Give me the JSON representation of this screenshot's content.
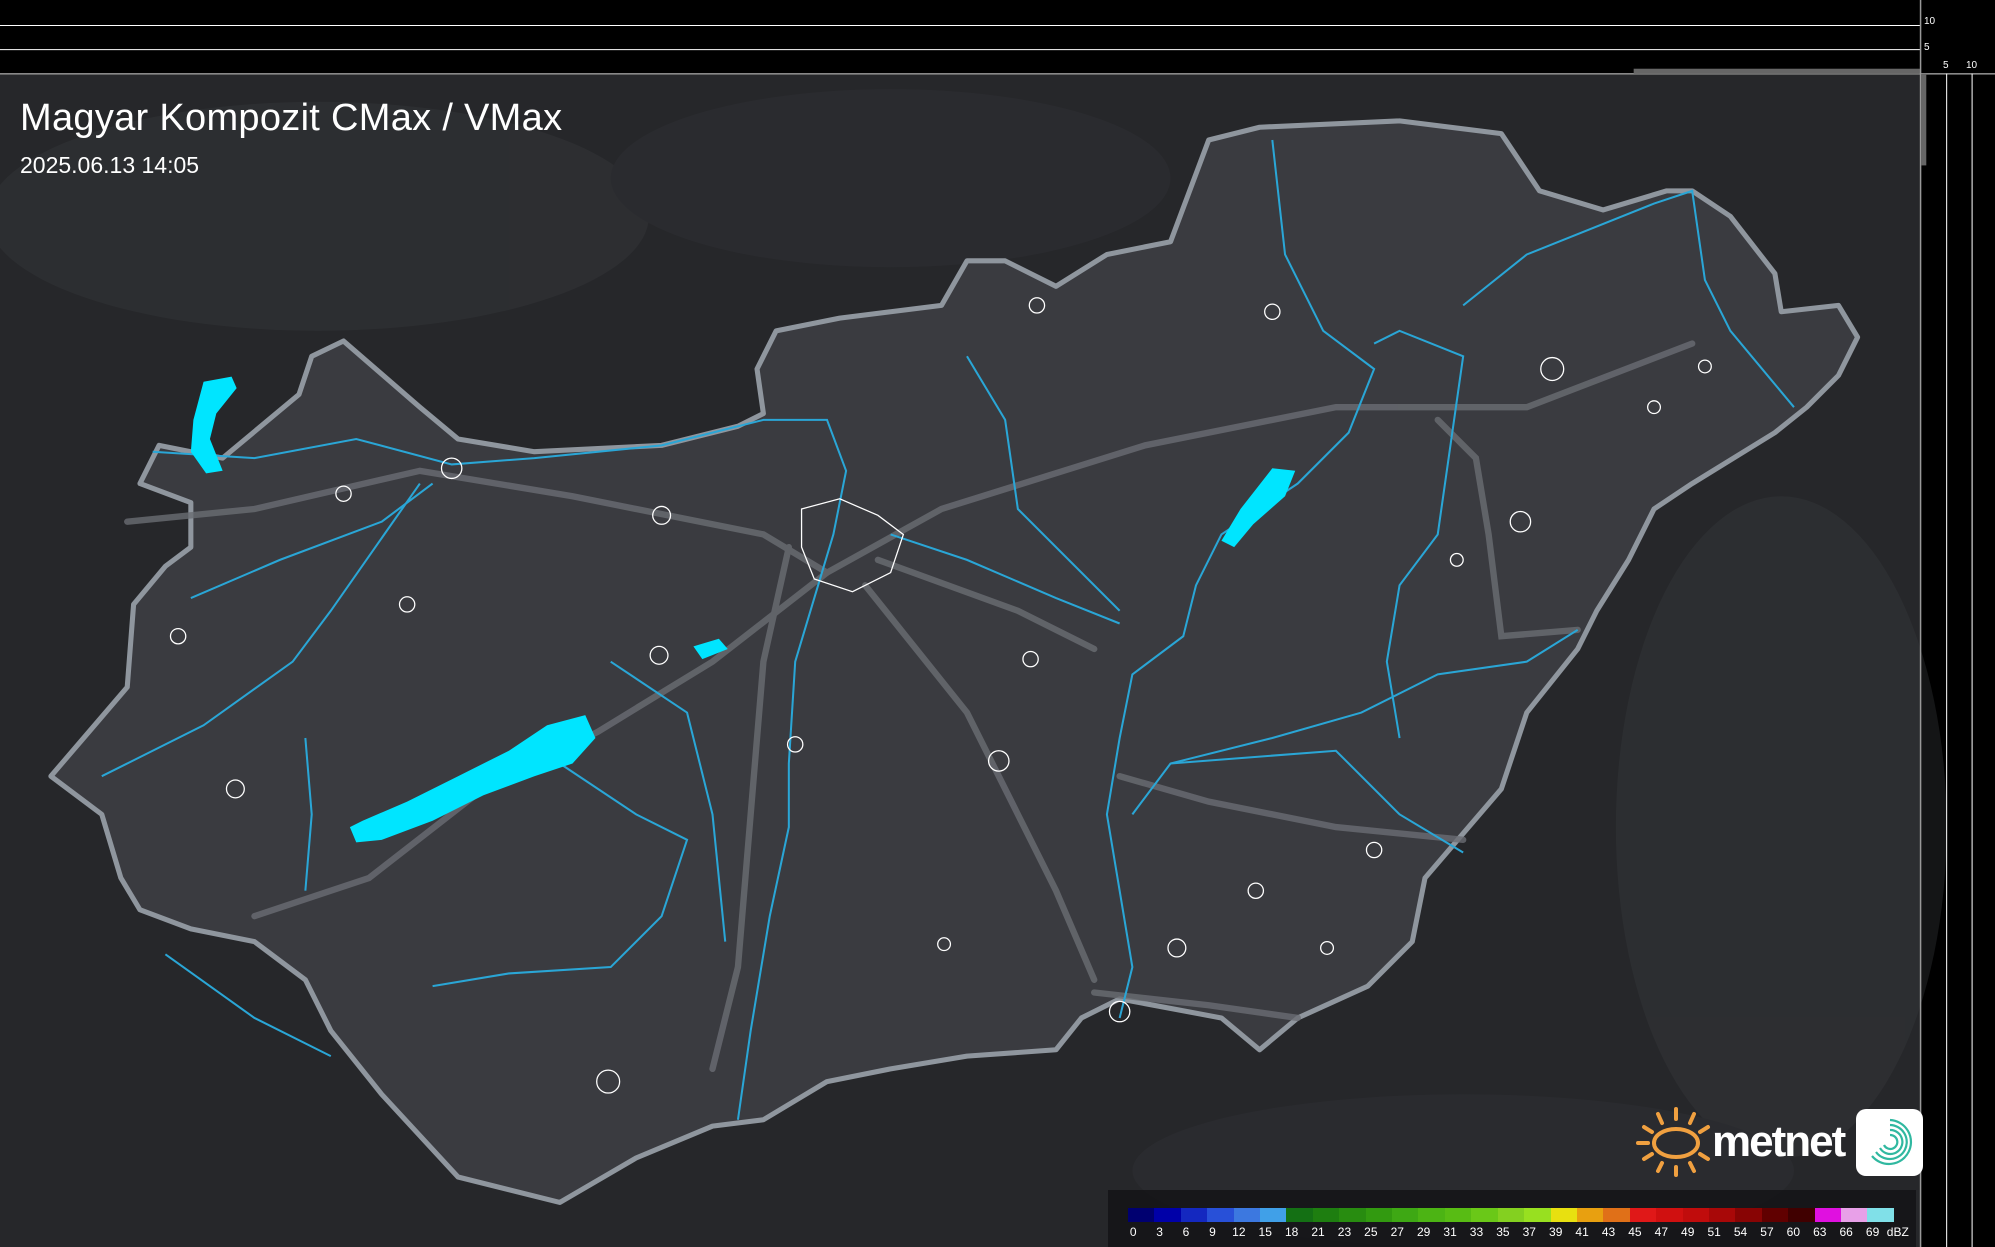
{
  "header": {
    "title": "Magyar Kompozit CMax / VMax",
    "timestamp": "2025.06.13 14:05"
  },
  "profile_axes": {
    "horizontal_ticks": [
      "10",
      "5"
    ],
    "vertical_ticks": [
      "5",
      "10"
    ]
  },
  "legend": {
    "unit": "dBZ",
    "labels": [
      "0",
      "3",
      "6",
      "9",
      "12",
      "15",
      "18",
      "21",
      "23",
      "25",
      "27",
      "29",
      "31",
      "33",
      "35",
      "37",
      "39",
      "41",
      "43",
      "45",
      "47",
      "49",
      "51",
      "54",
      "57",
      "60",
      "63",
      "66",
      "69"
    ],
    "colors": [
      "#000070",
      "#0000a8",
      "#1428c0",
      "#2850d8",
      "#3c78e0",
      "#40a0e8",
      "#147014",
      "#1e7e10",
      "#288c10",
      "#329a10",
      "#3ea814",
      "#4cb414",
      "#58bc14",
      "#6ac818",
      "#84d020",
      "#98e020",
      "#e8e010",
      "#e8a010",
      "#e07018",
      "#e01818",
      "#d01010",
      "#c00c0c",
      "#a80808",
      "#880404",
      "#600000",
      "#400000",
      "#e010e0",
      "#e8a0e8",
      "#80e0e8"
    ]
  },
  "branding": {
    "logo_text": "metnet",
    "sun_color": "#f0a040",
    "swirl_color": "#30b8a0"
  },
  "colors": {
    "water": "#00e5ff",
    "river": "#2aa6d6",
    "border": "#9aa0a8",
    "land": "#3a3b40",
    "background": "#26272a"
  }
}
